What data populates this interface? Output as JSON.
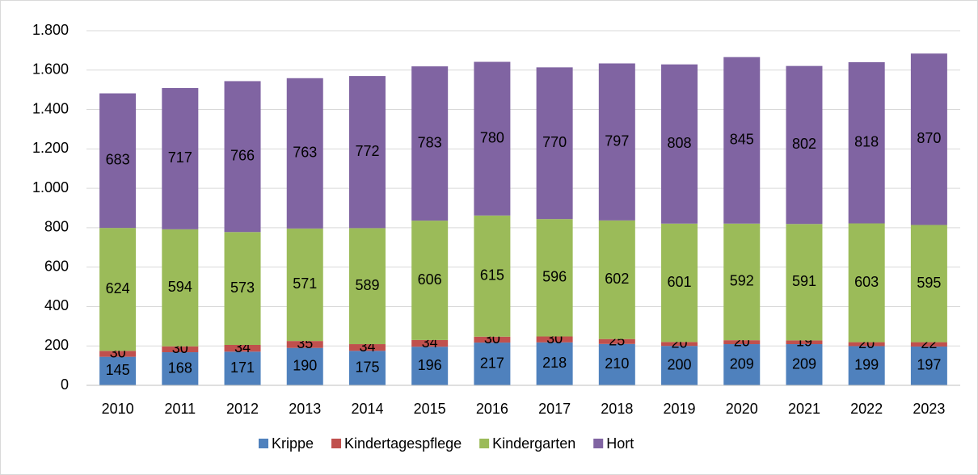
{
  "chart_data": {
    "type": "stacked_bar",
    "categories": [
      "2010",
      "2011",
      "2012",
      "2013",
      "2014",
      "2015",
      "2016",
      "2017",
      "2018",
      "2019",
      "2020",
      "2021",
      "2022",
      "2023"
    ],
    "series": [
      {
        "name": "Krippe",
        "color": "#4f81bd",
        "values": [
          145,
          168,
          171,
          190,
          175,
          196,
          217,
          218,
          210,
          200,
          209,
          209,
          199,
          197
        ]
      },
      {
        "name": "Kindertagespflege",
        "color": "#c0504d",
        "values": [
          30,
          30,
          34,
          35,
          34,
          34,
          30,
          30,
          25,
          20,
          20,
          19,
          20,
          22
        ]
      },
      {
        "name": "Kindergarten",
        "color": "#9bbb59",
        "values": [
          624,
          594,
          573,
          571,
          589,
          606,
          615,
          596,
          602,
          601,
          592,
          591,
          603,
          595
        ]
      },
      {
        "name": "Hort",
        "color": "#8064a2",
        "values": [
          683,
          717,
          766,
          763,
          772,
          783,
          780,
          770,
          797,
          808,
          845,
          802,
          818,
          870
        ]
      }
    ],
    "ylim": [
      0,
      1800
    ],
    "yticks": [
      0,
      200,
      400,
      600,
      800,
      {
        "value": 1000,
        "label": "1.000"
      },
      {
        "value": 1200,
        "label": "1.200"
      },
      {
        "value": 1400,
        "label": "1.400"
      },
      {
        "value": 1600,
        "label": "1.600"
      },
      {
        "value": 1800,
        "label": "1.800"
      }
    ],
    "grid": true,
    "legend": "bottom"
  }
}
